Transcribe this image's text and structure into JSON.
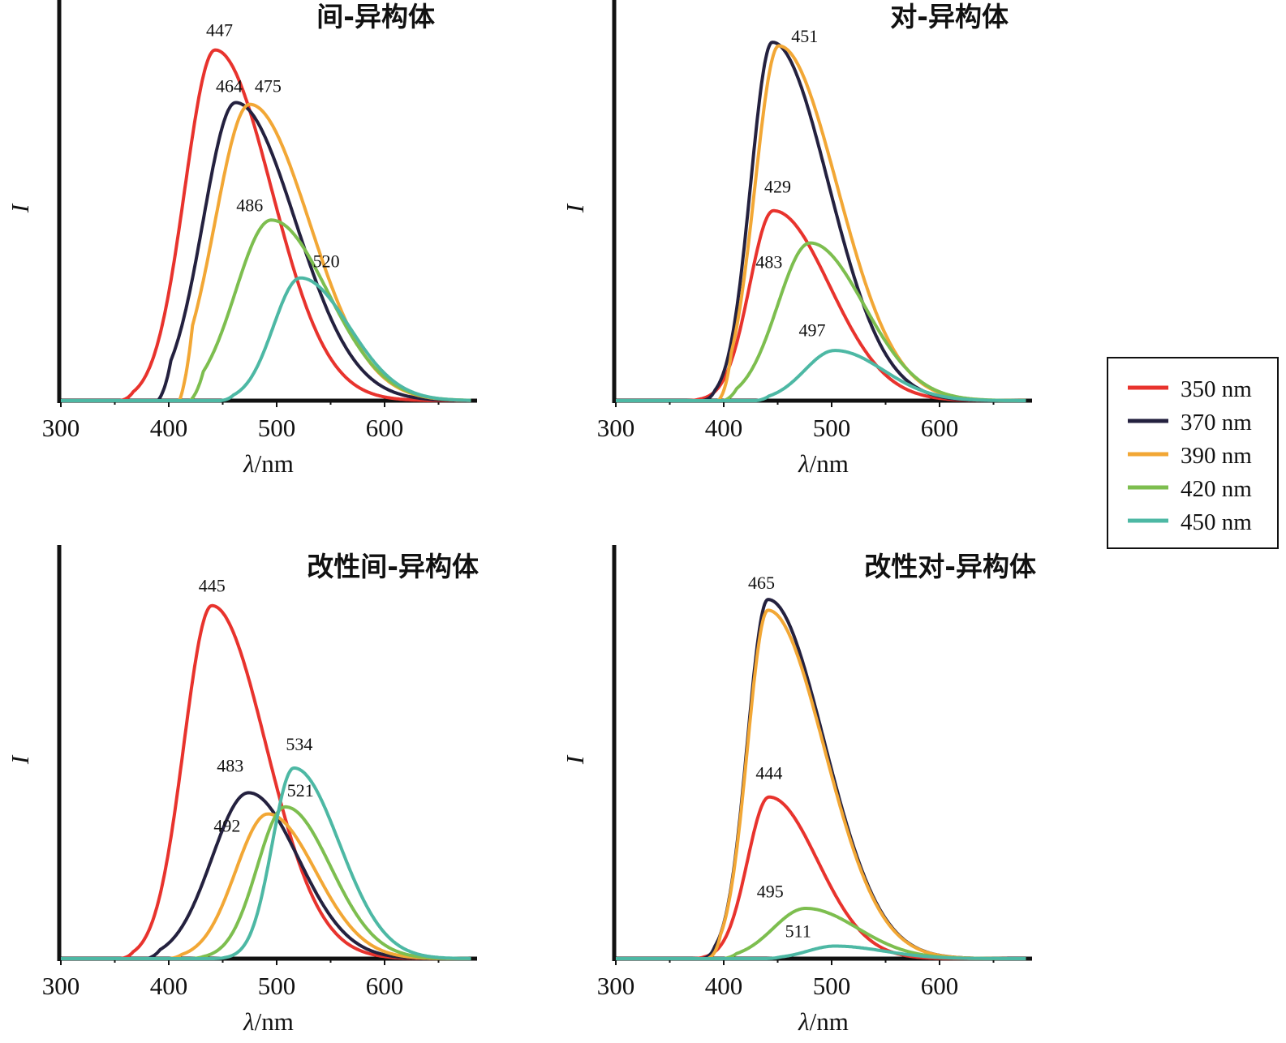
{
  "legend": {
    "entries": [
      {
        "label": "350 nm",
        "color": "#e8332d"
      },
      {
        "label": "370 nm",
        "color": "#24213f"
      },
      {
        "label": "390 nm",
        "color": "#f2a735"
      },
      {
        "label": "420 nm",
        "color": "#7dbe4f"
      },
      {
        "label": "450 nm",
        "color": "#4db8a4"
      }
    ]
  },
  "chart_data": [
    {
      "type": "line",
      "title": "间-异构体",
      "xlabel_italic": "λ",
      "xlabel_unit": "/nm",
      "ylabel": "I",
      "xlim": [
        300,
        690
      ],
      "ylim": [
        0,
        1.05
      ],
      "x_ticks": [
        300,
        400,
        500,
        600
      ],
      "x_tick_labels": [
        "300",
        "400",
        "500",
        "600"
      ],
      "series": [
        {
          "name": "350 nm",
          "center": 443,
          "amplitude": 1.0,
          "sigma_left": 28,
          "sigma_right": 52,
          "onset": 355
        },
        {
          "name": "370 nm",
          "center": 462,
          "amplitude": 0.85,
          "sigma_left": 30,
          "sigma_right": 55,
          "onset": 390
        },
        {
          "name": "390 nm",
          "center": 475,
          "amplitude": 0.845,
          "sigma_left": 32,
          "sigma_right": 55,
          "onset": 410
        },
        {
          "name": "420 nm",
          "center": 495,
          "amplitude": 0.515,
          "sigma_left": 33,
          "sigma_right": 52,
          "onset": 420
        },
        {
          "name": "450 nm",
          "center": 522,
          "amplitude": 0.35,
          "sigma_left": 25,
          "sigma_right": 45,
          "onset": 448
        }
      ],
      "annotations": [
        {
          "text": "447",
          "x": 447,
          "y": 1.04
        },
        {
          "text": "464",
          "x": 456,
          "y": 0.88
        },
        {
          "text": "475",
          "x": 492,
          "y": 0.88
        },
        {
          "text": "486",
          "x": 475,
          "y": 0.54
        },
        {
          "text": "520",
          "x": 546,
          "y": 0.38
        }
      ]
    },
    {
      "type": "line",
      "title": "对-异构体",
      "xlabel_italic": "λ",
      "xlabel_unit": "/nm",
      "ylabel": "I",
      "xlim": [
        300,
        690
      ],
      "ylim": [
        0,
        1.05
      ],
      "x_ticks": [
        300,
        400,
        500,
        600
      ],
      "x_tick_labels": [
        "300",
        "400",
        "500",
        "600"
      ],
      "series": [
        {
          "name": "350 nm",
          "center": 446,
          "amplitude": 0.53,
          "sigma_left": 22,
          "sigma_right": 52,
          "onset": 365
        },
        {
          "name": "370 nm",
          "center": 445,
          "amplitude": 1.0,
          "sigma_left": 20,
          "sigma_right": 52,
          "onset": 380
        },
        {
          "name": "390 nm",
          "center": 451,
          "amplitude": 0.99,
          "sigma_left": 22,
          "sigma_right": 54,
          "onset": 395
        },
        {
          "name": "420 nm",
          "center": 480,
          "amplitude": 0.44,
          "sigma_left": 30,
          "sigma_right": 50,
          "onset": 400
        },
        {
          "name": "450 nm",
          "center": 503,
          "amplitude": 0.14,
          "sigma_left": 28,
          "sigma_right": 45,
          "onset": 430
        }
      ],
      "annotations": [
        {
          "text": "451",
          "x": 475,
          "y": 1.0
        },
        {
          "text": "429",
          "x": 450,
          "y": 0.58
        },
        {
          "text": "483",
          "x": 442,
          "y": 0.37
        },
        {
          "text": "497",
          "x": 482,
          "y": 0.18
        }
      ]
    },
    {
      "type": "line",
      "title": "改性间-异构体",
      "xlabel_italic": "λ",
      "xlabel_unit": "/nm",
      "ylabel": "I",
      "xlim": [
        300,
        690
      ],
      "ylim": [
        0,
        1.05
      ],
      "x_ticks": [
        300,
        400,
        500,
        600
      ],
      "x_tick_labels": [
        "300",
        "400",
        "500",
        "600"
      ],
      "series": [
        {
          "name": "350 nm",
          "center": 440,
          "amplitude": 1.0,
          "sigma_left": 26,
          "sigma_right": 50,
          "onset": 355
        },
        {
          "name": "370 nm",
          "center": 474,
          "amplitude": 0.47,
          "sigma_left": 34,
          "sigma_right": 46,
          "onset": 380
        },
        {
          "name": "390 nm",
          "center": 492,
          "amplitude": 0.41,
          "sigma_left": 30,
          "sigma_right": 44,
          "onset": 400
        },
        {
          "name": "420 nm",
          "center": 508,
          "amplitude": 0.43,
          "sigma_left": 26,
          "sigma_right": 42,
          "onset": 420
        },
        {
          "name": "450 nm",
          "center": 516,
          "amplitude": 0.54,
          "sigma_left": 20,
          "sigma_right": 42,
          "onset": 440
        }
      ],
      "annotations": [
        {
          "text": "445",
          "x": 440,
          "y": 1.04
        },
        {
          "text": "483",
          "x": 457,
          "y": 0.53
        },
        {
          "text": "492",
          "x": 454,
          "y": 0.36
        },
        {
          "text": "521",
          "x": 522,
          "y": 0.46
        },
        {
          "text": "534",
          "x": 521,
          "y": 0.59
        }
      ]
    },
    {
      "type": "line",
      "title": "改性对-异构体",
      "xlabel_italic": "λ",
      "xlabel_unit": "/nm",
      "ylabel": "I",
      "xlim": [
        300,
        690
      ],
      "ylim": [
        0,
        1.05
      ],
      "x_ticks": [
        300,
        400,
        500,
        600
      ],
      "x_tick_labels": [
        "300",
        "400",
        "500",
        "600"
      ],
      "series": [
        {
          "name": "350 nm",
          "center": 442,
          "amplitude": 0.45,
          "sigma_left": 20,
          "sigma_right": 45,
          "onset": 370
        },
        {
          "name": "370 nm",
          "center": 441,
          "amplitude": 1.0,
          "sigma_left": 19,
          "sigma_right": 52,
          "onset": 380
        },
        {
          "name": "390 nm",
          "center": 441,
          "amplitude": 0.97,
          "sigma_left": 19,
          "sigma_right": 52,
          "onset": 385
        },
        {
          "name": "420 nm",
          "center": 476,
          "amplitude": 0.14,
          "sigma_left": 30,
          "sigma_right": 48,
          "onset": 400
        },
        {
          "name": "450 nm",
          "center": 503,
          "amplitude": 0.035,
          "sigma_left": 25,
          "sigma_right": 45,
          "onset": 440
        }
      ],
      "annotations": [
        {
          "text": "465",
          "x": 435,
          "y": 1.03
        },
        {
          "text": "444",
          "x": 442,
          "y": 0.5
        },
        {
          "text": "495",
          "x": 443,
          "y": 0.17
        },
        {
          "text": "511",
          "x": 469,
          "y": 0.06
        }
      ]
    }
  ]
}
